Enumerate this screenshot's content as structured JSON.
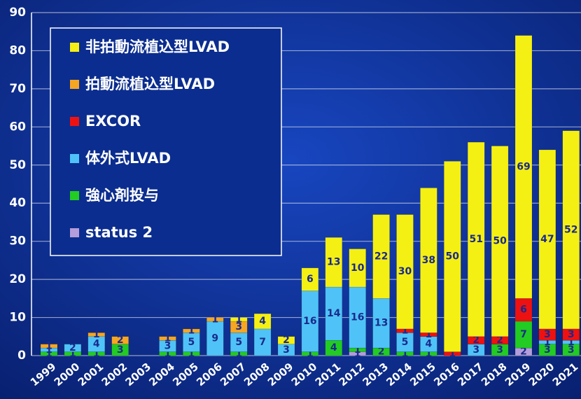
{
  "chart_data": {
    "type": "stacked_bar",
    "categories": [
      "1999",
      "2000",
      "2001",
      "2002",
      "2003",
      "2004",
      "2005",
      "2006",
      "2007",
      "2008",
      "2009",
      "2010",
      "2011",
      "2012",
      "2013",
      "2014",
      "2015",
      "2016",
      "2017",
      "2018",
      "2019",
      "2020",
      "2021"
    ],
    "series": [
      {
        "name": "status 2",
        "color": "#b39ddb",
        "values": [
          0,
          0,
          0,
          0,
          0,
          0,
          0,
          0,
          0,
          0,
          0,
          0,
          0,
          1,
          0,
          0,
          0,
          0,
          0,
          0,
          2,
          0,
          0
        ]
      },
      {
        "name": "強心剤投与",
        "color": "#22cc22",
        "values": [
          1,
          1,
          1,
          3,
          0,
          1,
          1,
          0,
          1,
          0,
          0,
          1,
          4,
          1,
          2,
          1,
          1,
          0,
          0,
          3,
          7,
          3,
          3
        ]
      },
      {
        "name": "体外式LVAD",
        "color": "#4fc3f7",
        "values": [
          1,
          2,
          4,
          0,
          0,
          3,
          5,
          9,
          5,
          7,
          3,
          16,
          14,
          16,
          13,
          5,
          4,
          0,
          3,
          0,
          0,
          1,
          1
        ]
      },
      {
        "name": "EXCOR",
        "color": "#ee1111",
        "values": [
          0,
          0,
          0,
          0,
          0,
          0,
          0,
          0,
          0,
          0,
          0,
          0,
          0,
          0,
          0,
          1,
          1,
          1,
          2,
          2,
          6,
          3,
          3
        ]
      },
      {
        "name": "拍動流植込型LVAD",
        "color": "#f5a623",
        "values": [
          1,
          0,
          1,
          2,
          0,
          1,
          1,
          1,
          3,
          0,
          0,
          0,
          0,
          0,
          0,
          0,
          0,
          0,
          0,
          0,
          0,
          0,
          0
        ]
      },
      {
        "name": "非拍動流植込型LVAD",
        "color": "#f5f014",
        "values": [
          0,
          0,
          0,
          0,
          0,
          0,
          0,
          0,
          1,
          4,
          2,
          6,
          13,
          10,
          22,
          30,
          38,
          50,
          51,
          50,
          69,
          47,
          52
        ]
      }
    ],
    "ylim": [
      0,
      90
    ],
    "yticks": [
      0,
      10,
      20,
      30,
      40,
      50,
      60,
      70,
      80,
      90
    ],
    "grid": true,
    "legend": "upper left"
  }
}
